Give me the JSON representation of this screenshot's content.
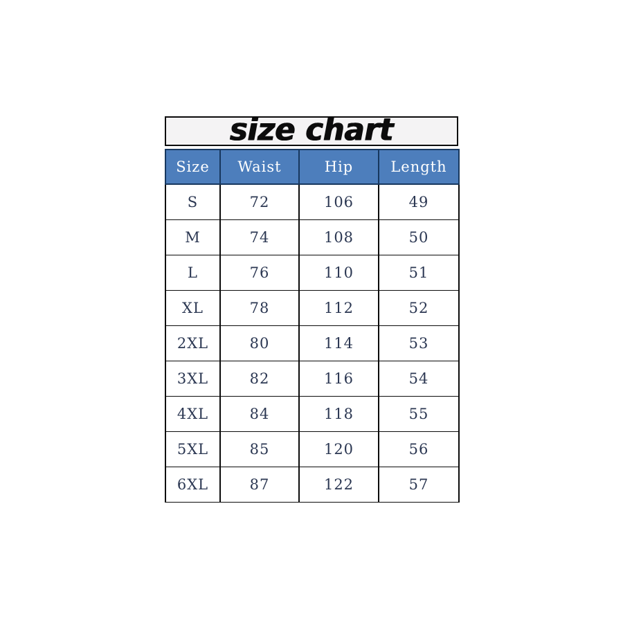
{
  "title": "size chart",
  "colors": {
    "header_bg": "#4d7ebc",
    "header_border": "#17375e",
    "header_text": "#ffffff",
    "grid_border": "#0b0b0b",
    "cell_text": "#2b3752",
    "title_bg": "#f4f3f4",
    "page_bg": "#ffffff"
  },
  "chart_data": {
    "type": "table",
    "title": "size chart",
    "columns": [
      "Size",
      "Waist",
      "Hip",
      "Length"
    ],
    "rows": [
      [
        "S",
        "72",
        "106",
        "49"
      ],
      [
        "M",
        "74",
        "108",
        "50"
      ],
      [
        "L",
        "76",
        "110",
        "51"
      ],
      [
        "XL",
        "78",
        "112",
        "52"
      ],
      [
        "2XL",
        "80",
        "114",
        "53"
      ],
      [
        "3XL",
        "82",
        "116",
        "54"
      ],
      [
        "4XL",
        "84",
        "118",
        "55"
      ],
      [
        "5XL",
        "85",
        "120",
        "56"
      ],
      [
        "6XL",
        "87",
        "122",
        "57"
      ]
    ]
  }
}
